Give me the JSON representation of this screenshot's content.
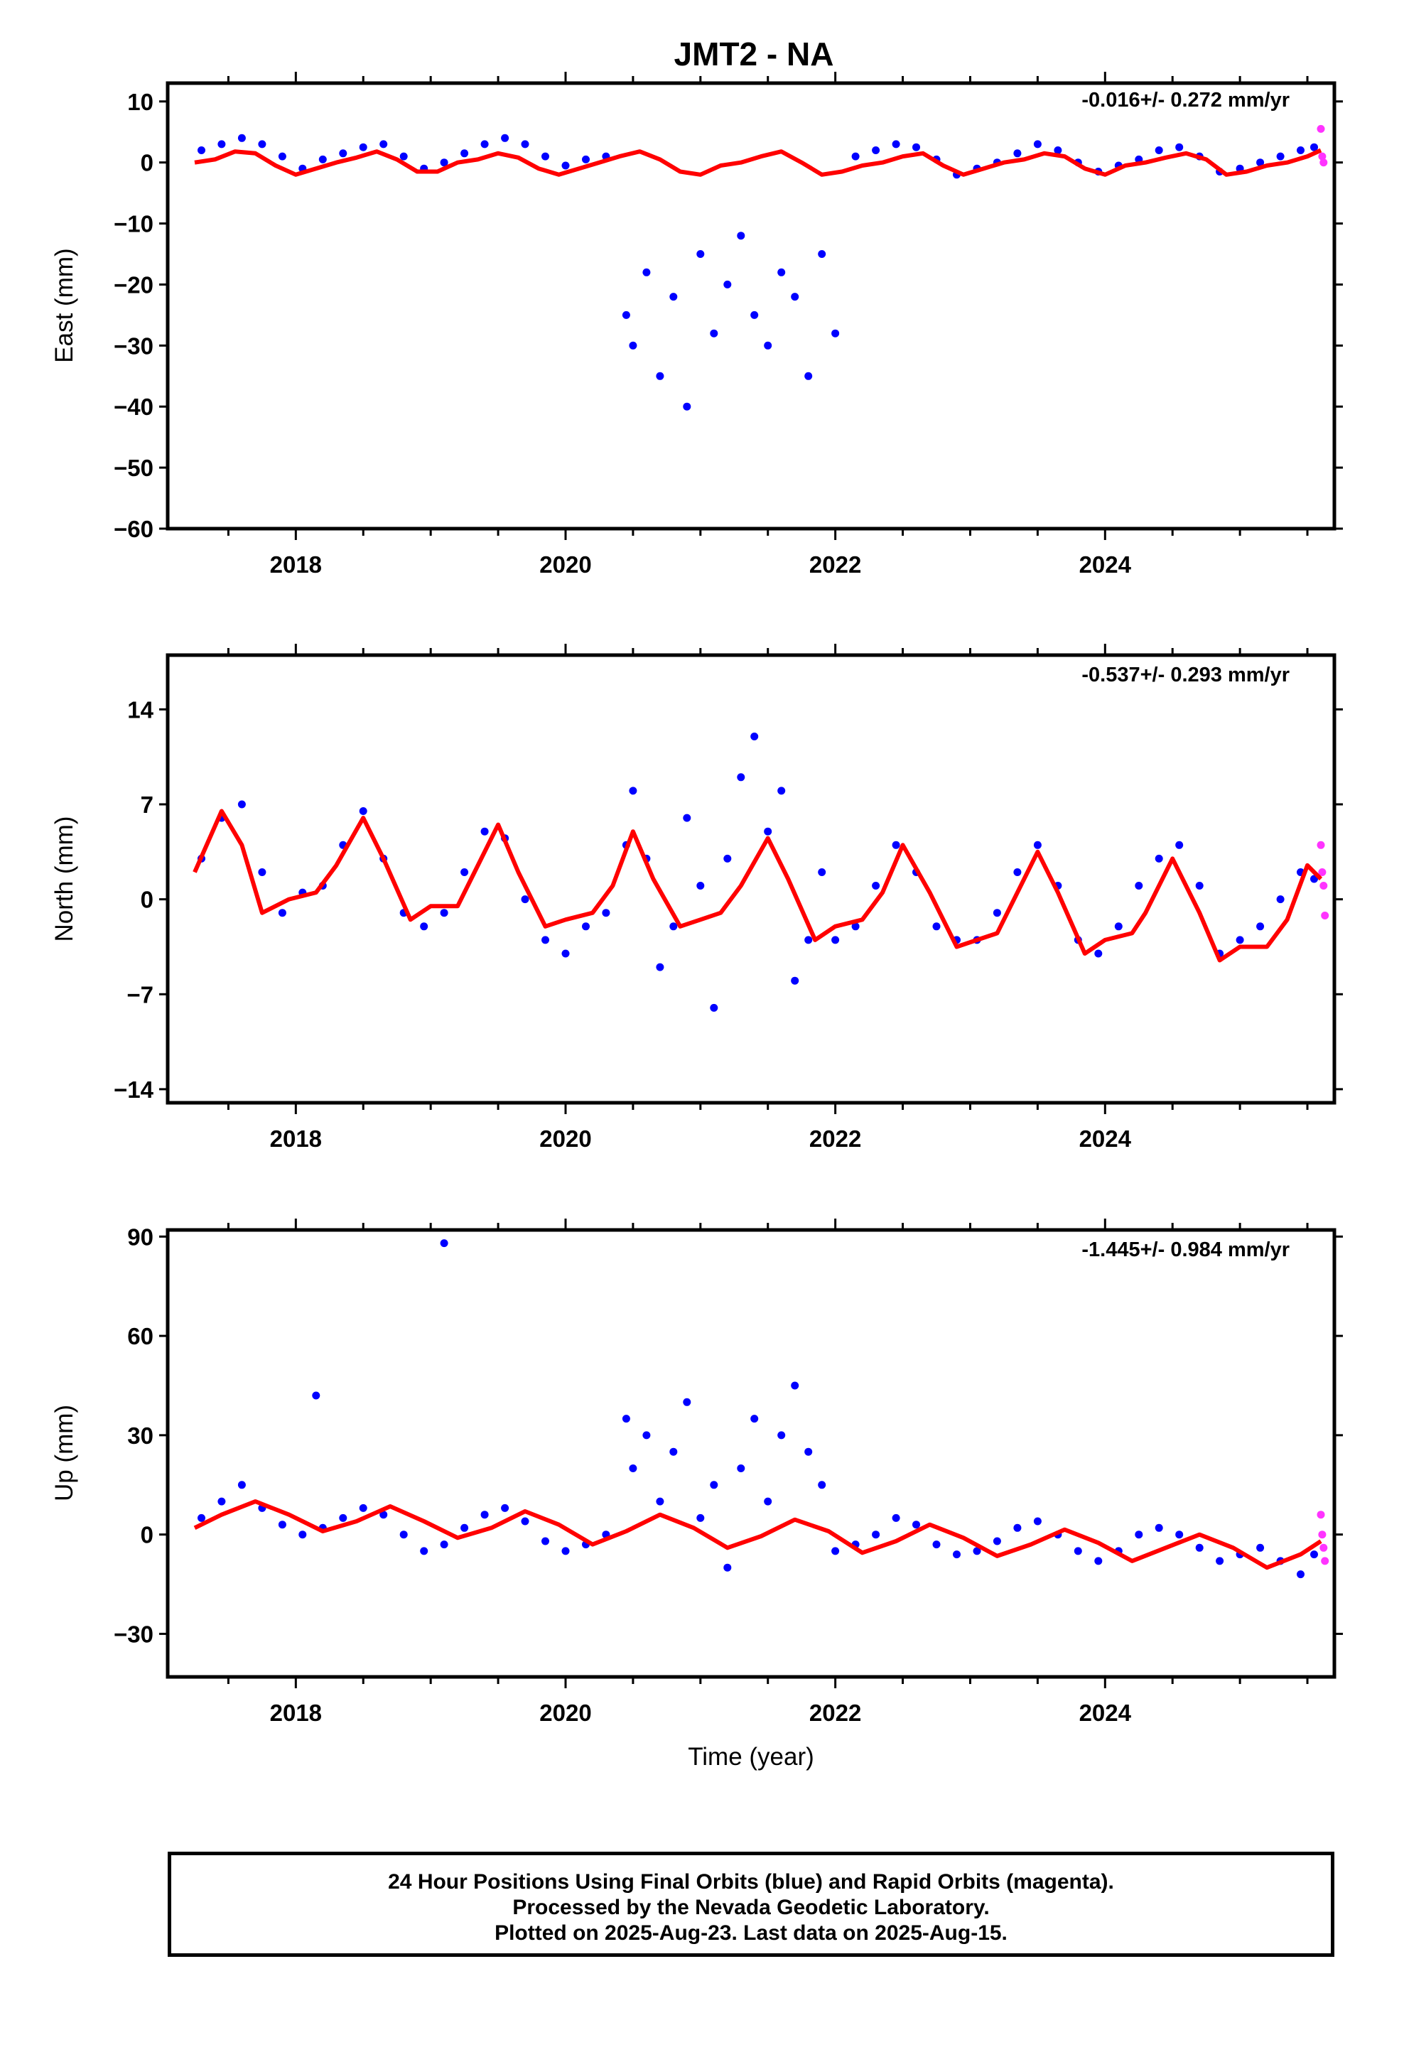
{
  "title": "JMT2 - NA",
  "xlabel": "Time (year)",
  "footer": {
    "line1": "24 Hour Positions Using Final Orbits (blue) and Rapid Orbits (magenta).",
    "line2": "Processed by the Nevada Geodetic Laboratory.",
    "line3": "Plotted on 2025-Aug-23. Last data on 2025-Aug-15."
  },
  "colors": {
    "final": "#0000ff",
    "rapid": "#ff33ff",
    "model": "#ff0000",
    "frame": "#000000"
  },
  "chart_data": [
    {
      "type": "scatter",
      "ylabel": "East (mm)",
      "rate": "-0.016+/- 0.272 mm/yr",
      "xlim": [
        2017.05,
        2025.7
      ],
      "ylim": [
        -60,
        13
      ],
      "yticks": [
        10,
        0,
        -10,
        -20,
        -30,
        -40,
        -50,
        -60
      ],
      "xticks": [
        2018,
        2020,
        2022,
        2024
      ],
      "series": [
        {
          "role": "final",
          "x": [
            2017.3,
            2017.45,
            2017.6,
            2017.75,
            2017.9,
            2018.05,
            2018.2,
            2018.35,
            2018.5,
            2018.65,
            2018.8,
            2018.95,
            2019.1,
            2019.25,
            2019.4,
            2019.55,
            2019.7,
            2019.85,
            2020.0,
            2020.15,
            2020.3,
            2020.45,
            2020.5,
            2020.6,
            2020.7,
            2020.8,
            2020.9,
            2021.0,
            2021.1,
            2021.2,
            2021.3,
            2021.4,
            2021.5,
            2021.6,
            2021.7,
            2021.8,
            2021.9,
            2022.0,
            2022.15,
            2022.3,
            2022.45,
            2022.6,
            2022.75,
            2022.9,
            2023.05,
            2023.2,
            2023.35,
            2023.5,
            2023.65,
            2023.8,
            2023.95,
            2024.1,
            2024.25,
            2024.4,
            2024.55,
            2024.7,
            2024.85,
            2025.0,
            2025.15,
            2025.3,
            2025.45,
            2025.55
          ],
          "y": [
            2.0,
            3.0,
            4.0,
            3.0,
            1.0,
            -1.0,
            0.5,
            1.5,
            2.5,
            3.0,
            1.0,
            -1.0,
            0.0,
            1.5,
            3.0,
            4.0,
            3.0,
            1.0,
            -0.5,
            0.5,
            1.0,
            -25.0,
            -30.0,
            -18.0,
            -35.0,
            -22.0,
            -40.0,
            -15.0,
            -28.0,
            -20.0,
            -12.0,
            -25.0,
            -30.0,
            -18.0,
            -22.0,
            -35.0,
            -15.0,
            -28.0,
            1.0,
            2.0,
            3.0,
            2.5,
            0.5,
            -2.0,
            -1.0,
            0.0,
            1.5,
            3.0,
            2.0,
            0.0,
            -1.5,
            -0.5,
            0.5,
            2.0,
            2.5,
            1.0,
            -1.5,
            -1.0,
            0.0,
            1.0,
            2.0,
            2.5
          ]
        },
        {
          "role": "rapid",
          "x": [
            2025.6,
            2025.61,
            2025.62
          ],
          "y": [
            5.5,
            1.0,
            0.0
          ]
        },
        {
          "role": "model",
          "x": [
            2017.25,
            2017.4,
            2017.55,
            2017.7,
            2017.85,
            2018.0,
            2018.15,
            2018.3,
            2018.45,
            2018.6,
            2018.75,
            2018.9,
            2019.05,
            2019.2,
            2019.35,
            2019.5,
            2019.65,
            2019.8,
            2019.95,
            2020.1,
            2020.25,
            2020.4,
            2020.55,
            2020.7,
            2020.85,
            2021.0,
            2021.15,
            2021.3,
            2021.45,
            2021.6,
            2021.75,
            2021.9,
            2022.05,
            2022.2,
            2022.35,
            2022.5,
            2022.65,
            2022.8,
            2022.95,
            2023.1,
            2023.25,
            2023.4,
            2023.55,
            2023.7,
            2023.85,
            2024.0,
            2024.15,
            2024.3,
            2024.45,
            2024.6,
            2024.75,
            2024.9,
            2025.05,
            2025.2,
            2025.35,
            2025.5,
            2025.6
          ],
          "y": [
            0.0,
            0.5,
            1.8,
            1.5,
            -0.5,
            -2.0,
            -1.0,
            0.0,
            0.8,
            1.8,
            0.5,
            -1.5,
            -1.5,
            0.0,
            0.5,
            1.5,
            0.8,
            -1.0,
            -2.0,
            -1.0,
            0.0,
            1.0,
            1.8,
            0.5,
            -1.5,
            -2.0,
            -0.5,
            0.0,
            1.0,
            1.8,
            0.0,
            -2.0,
            -1.5,
            -0.5,
            0.0,
            1.0,
            1.5,
            -0.5,
            -2.0,
            -1.0,
            0.0,
            0.5,
            1.5,
            1.0,
            -1.0,
            -2.0,
            -0.5,
            0.0,
            0.8,
            1.5,
            0.5,
            -2.0,
            -1.5,
            -0.5,
            0.0,
            1.0,
            2.0
          ]
        }
      ]
    },
    {
      "type": "scatter",
      "ylabel": "North (mm)",
      "rate": "-0.537+/- 0.293 mm/yr",
      "xlim": [
        2017.05,
        2025.7
      ],
      "ylim": [
        -15,
        18
      ],
      "yticks": [
        14,
        7,
        0,
        -7,
        -14
      ],
      "xticks": [
        2018,
        2020,
        2022,
        2024
      ],
      "series": [
        {
          "role": "final",
          "x": [
            2017.3,
            2017.45,
            2017.6,
            2017.75,
            2017.9,
            2018.05,
            2018.2,
            2018.35,
            2018.5,
            2018.65,
            2018.8,
            2018.95,
            2019.1,
            2019.25,
            2019.4,
            2019.55,
            2019.7,
            2019.85,
            2020.0,
            2020.15,
            2020.3,
            2020.45,
            2020.5,
            2020.6,
            2020.7,
            2020.8,
            2020.9,
            2021.0,
            2021.1,
            2021.2,
            2021.3,
            2021.4,
            2021.5,
            2021.6,
            2021.7,
            2021.8,
            2021.9,
            2022.0,
            2022.15,
            2022.3,
            2022.45,
            2022.6,
            2022.75,
            2022.9,
            2023.05,
            2023.2,
            2023.35,
            2023.5,
            2023.65,
            2023.8,
            2023.95,
            2024.1,
            2024.25,
            2024.4,
            2024.55,
            2024.7,
            2024.85,
            2025.0,
            2025.15,
            2025.3,
            2025.45,
            2025.55
          ],
          "y": [
            3.0,
            6.0,
            7.0,
            2.0,
            -1.0,
            0.5,
            1.0,
            4.0,
            6.5,
            3.0,
            -1.0,
            -2.0,
            -1.0,
            2.0,
            5.0,
            4.5,
            0.0,
            -3.0,
            -4.0,
            -2.0,
            -1.0,
            4.0,
            8.0,
            3.0,
            -5.0,
            -2.0,
            6.0,
            1.0,
            -8.0,
            3.0,
            9.0,
            12.0,
            5.0,
            8.0,
            -6.0,
            -3.0,
            2.0,
            -3.0,
            -2.0,
            1.0,
            4.0,
            2.0,
            -2.0,
            -3.0,
            -3.0,
            -1.0,
            2.0,
            4.0,
            1.0,
            -3.0,
            -4.0,
            -2.0,
            1.0,
            3.0,
            4.0,
            1.0,
            -4.0,
            -3.0,
            -2.0,
            0.0,
            2.0,
            1.5
          ]
        },
        {
          "role": "rapid",
          "x": [
            2025.6,
            2025.61,
            2025.62,
            2025.63
          ],
          "y": [
            4.0,
            2.0,
            1.0,
            -1.2
          ]
        },
        {
          "role": "model",
          "x": [
            2017.25,
            2017.45,
            2017.6,
            2017.75,
            2017.95,
            2018.15,
            2018.3,
            2018.5,
            2018.65,
            2018.85,
            2019.0,
            2019.2,
            2019.3,
            2019.5,
            2019.65,
            2019.85,
            2020.0,
            2020.2,
            2020.35,
            2020.5,
            2020.65,
            2020.85,
            2021.0,
            2021.15,
            2021.3,
            2021.5,
            2021.65,
            2021.85,
            2022.0,
            2022.2,
            2022.35,
            2022.5,
            2022.7,
            2022.9,
            2023.05,
            2023.2,
            2023.3,
            2023.5,
            2023.65,
            2023.85,
            2024.0,
            2024.2,
            2024.3,
            2024.5,
            2024.7,
            2024.85,
            2025.0,
            2025.2,
            2025.35,
            2025.5,
            2025.6
          ],
          "y": [
            2.0,
            6.5,
            4.0,
            -1.0,
            0.0,
            0.5,
            2.5,
            6.0,
            3.0,
            -1.5,
            -0.5,
            -0.5,
            1.5,
            5.5,
            2.0,
            -2.0,
            -1.5,
            -1.0,
            1.0,
            5.0,
            1.5,
            -2.0,
            -1.5,
            -1.0,
            1.0,
            4.5,
            1.5,
            -3.0,
            -2.0,
            -1.5,
            0.5,
            4.0,
            0.5,
            -3.5,
            -3.0,
            -2.5,
            -0.5,
            3.5,
            0.5,
            -4.0,
            -3.0,
            -2.5,
            -1.0,
            3.0,
            -1.0,
            -4.5,
            -3.5,
            -3.5,
            -1.5,
            2.5,
            1.5
          ]
        }
      ]
    },
    {
      "type": "scatter",
      "ylabel": "Up (mm)",
      "rate": "-1.445+/- 0.984 mm/yr",
      "xlim": [
        2017.05,
        2025.7
      ],
      "ylim": [
        -43,
        92
      ],
      "yticks": [
        90,
        60,
        30,
        0,
        -30
      ],
      "xticks": [
        2018,
        2020,
        2022,
        2024
      ],
      "series": [
        {
          "role": "final",
          "x": [
            2017.3,
            2017.45,
            2017.6,
            2017.75,
            2017.9,
            2018.05,
            2018.2,
            2018.35,
            2018.5,
            2018.65,
            2018.8,
            2018.95,
            2019.1,
            2019.25,
            2019.4,
            2019.55,
            2019.7,
            2019.85,
            2020.0,
            2020.15,
            2020.3,
            2020.45,
            2020.5,
            2020.6,
            2020.7,
            2020.8,
            2020.9,
            2021.0,
            2021.1,
            2021.2,
            2021.3,
            2021.4,
            2021.5,
            2021.6,
            2021.7,
            2021.8,
            2021.9,
            2022.0,
            2022.15,
            2022.3,
            2022.45,
            2022.6,
            2022.75,
            2022.9,
            2023.05,
            2023.2,
            2023.35,
            2023.5,
            2023.65,
            2023.8,
            2023.95,
            2024.1,
            2024.25,
            2024.4,
            2024.55,
            2024.7,
            2024.85,
            2025.0,
            2025.15,
            2025.3,
            2025.45,
            2025.55,
            2019.1,
            2018.15
          ],
          "y": [
            5.0,
            10.0,
            15.0,
            8.0,
            3.0,
            0.0,
            2.0,
            5.0,
            8.0,
            6.0,
            0.0,
            -5.0,
            -3.0,
            2.0,
            6.0,
            8.0,
            4.0,
            -2.0,
            -5.0,
            -3.0,
            0.0,
            35.0,
            20.0,
            30.0,
            10.0,
            25.0,
            40.0,
            5.0,
            15.0,
            -10.0,
            20.0,
            35.0,
            10.0,
            30.0,
            45.0,
            25.0,
            15.0,
            -5.0,
            -3.0,
            0.0,
            5.0,
            3.0,
            -3.0,
            -6.0,
            -5.0,
            -2.0,
            2.0,
            4.0,
            0.0,
            -5.0,
            -8.0,
            -5.0,
            0.0,
            2.0,
            0.0,
            -4.0,
            -8.0,
            -6.0,
            -4.0,
            -8.0,
            -12.0,
            -6.0,
            88.0,
            42.0
          ]
        },
        {
          "role": "rapid",
          "x": [
            2025.6,
            2025.61,
            2025.62,
            2025.63
          ],
          "y": [
            6.0,
            0.0,
            -4.0,
            -8.0
          ]
        },
        {
          "role": "model",
          "x": [
            2017.25,
            2017.45,
            2017.7,
            2017.95,
            2018.2,
            2018.45,
            2018.7,
            2018.95,
            2019.2,
            2019.45,
            2019.7,
            2019.95,
            2020.2,
            2020.45,
            2020.7,
            2020.95,
            2021.2,
            2021.45,
            2021.7,
            2021.95,
            2022.2,
            2022.45,
            2022.7,
            2022.95,
            2023.2,
            2023.45,
            2023.7,
            2023.95,
            2024.2,
            2024.45,
            2024.7,
            2024.95,
            2025.2,
            2025.45,
            2025.6
          ],
          "y": [
            2.0,
            6.0,
            10.0,
            6.0,
            1.0,
            4.0,
            8.5,
            4.0,
            -1.0,
            2.0,
            7.0,
            3.0,
            -3.0,
            1.0,
            6.0,
            2.0,
            -4.0,
            -0.5,
            4.5,
            1.0,
            -5.5,
            -2.0,
            3.0,
            -1.0,
            -6.5,
            -3.0,
            1.5,
            -2.5,
            -8.0,
            -4.0,
            0.0,
            -4.0,
            -10.0,
            -6.0,
            -2.0
          ]
        }
      ]
    }
  ]
}
